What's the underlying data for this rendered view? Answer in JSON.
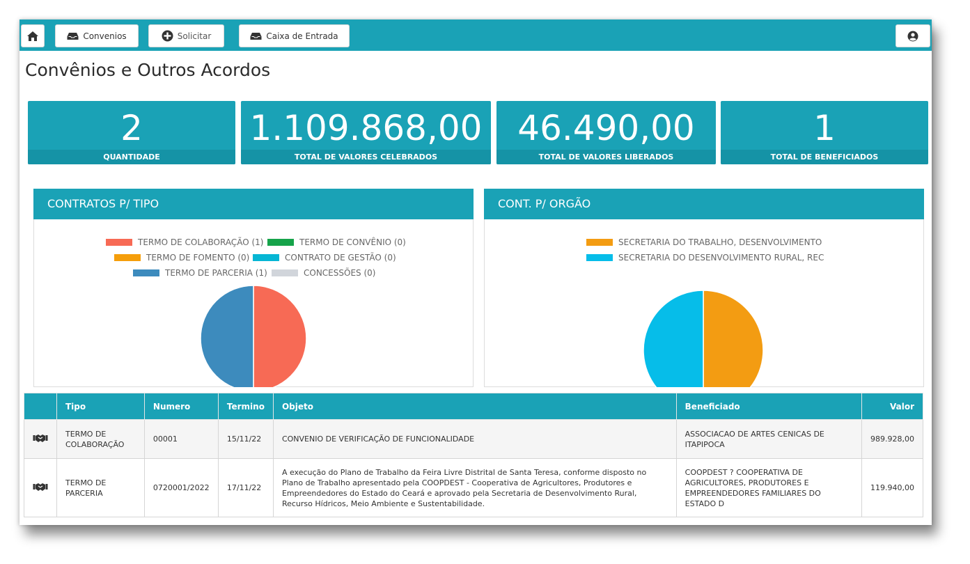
{
  "toolbar": {
    "home_icon": "home-icon",
    "convenios_label": "Convenios",
    "solicitar_label": "Solicitar",
    "caixa_label": "Caixa de Entrada",
    "user_icon": "user-icon"
  },
  "page": {
    "title": "Convênios e Outros Acordos"
  },
  "stats": [
    {
      "value": "2",
      "label": "QUANTIDADE"
    },
    {
      "value": "1.109.868,00",
      "label": "TOTAL DE VALORES CELEBRADOS"
    },
    {
      "value": "46.490,00",
      "label": "TOTAL DE VALORES LIBERADOS"
    },
    {
      "value": "1",
      "label": "TOTAL DE BENEFICIADOS"
    }
  ],
  "chart_data": [
    {
      "type": "pie",
      "title": "CONTRATOS P/ TIPO",
      "categories": [
        "TERMO DE COLABORAÇÃO",
        "TERMO DE CONVÊNIO",
        "TERMO DE FOMENTO",
        "CONTRATO DE GESTÃO",
        "TERMO DE PARCERIA",
        "CONCESSÕES"
      ],
      "values": [
        1,
        0,
        0,
        0,
        1,
        0
      ],
      "legend": [
        "TERMO DE COLABORAÇÃO (1)",
        "TERMO DE CONVÊNIO (0)",
        "TERMO DE FOMENTO (0)",
        "CONTRATO DE GESTÃO (0)",
        "TERMO DE PARCERIA (1)",
        "CONCESSÕES (0)"
      ],
      "colors": [
        "#f76a55",
        "#16a34a",
        "#f59e0b",
        "#06b6d4",
        "#3d8bbd",
        "#d1d5db"
      ],
      "legend_position": "top"
    },
    {
      "type": "pie",
      "title": "CONT. P/ ORGÃO",
      "categories": [
        "SECRETARIA DO TRABALHO, DESENVOLVIMENTO",
        "SECRETARIA DO DESENVOLVIMENTO RURAL, REC"
      ],
      "values": [
        1,
        1
      ],
      "legend": [
        "SECRETARIA DO TRABALHO, DESENVOLVIMENTO",
        "SECRETARIA DO DESENVOLVIMENTO RURAL, REC"
      ],
      "colors": [
        "#f39c12",
        "#06bde9"
      ],
      "legend_position": "top"
    }
  ],
  "table": {
    "headers": [
      "",
      "Tipo",
      "Numero",
      "Termino",
      "Objeto",
      "Beneficiado",
      "Valor"
    ],
    "rows": [
      {
        "icon": "handshake-icon",
        "tipo": "TERMO DE COLABORAÇÃO",
        "numero": "00001",
        "termino": "15/11/22",
        "objeto": "CONVENIO DE VERIFICAÇÃO DE FUNCIONALIDADE",
        "beneficiado": "ASSOCIACAO DE ARTES CENICAS DE ITAPIPOCA",
        "valor": "989.928,00"
      },
      {
        "icon": "handshake-icon",
        "tipo": "TERMO DE PARCERIA",
        "numero": "0720001/2022",
        "termino": "17/11/22",
        "objeto": "A execução do Plano de Trabalho da Feira Livre Distrital de Santa Teresa, conforme disposto no Plano de Trabalho apresentado pela COOPDEST - Cooperativa de Agricultores, Produtores e Empreendedores do Estado do Ceará e aprovado pela Secretaria de Desenvolvimento Rural, Recurso Hídricos, Meio Ambiente e Sustentabilidade.",
        "beneficiado": "COOPDEST ? COOPERATIVA DE AGRICULTORES, PRODUTORES E EMPREENDEDORES FAMILIARES DO ESTADO D",
        "valor": "119.940,00"
      }
    ]
  }
}
